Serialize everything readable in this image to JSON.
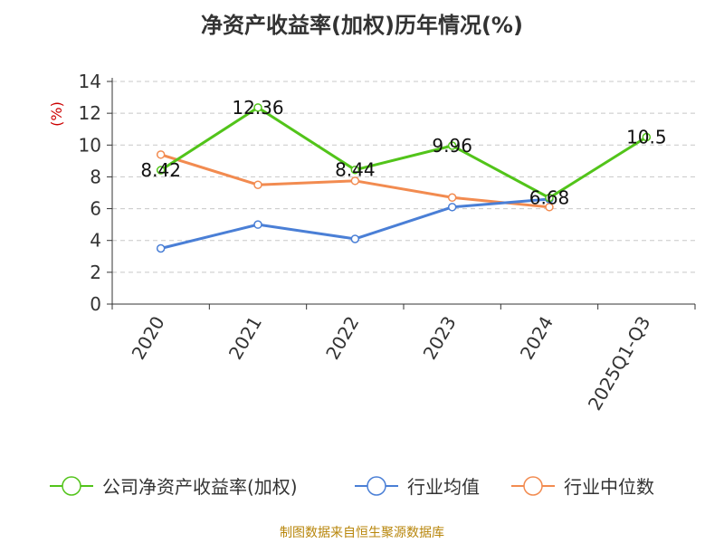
{
  "chart_data": {
    "type": "line",
    "title": "净资产收益率(加权)历年情况(%)",
    "ylabel": "(%)",
    "ylim": [
      0,
      14
    ],
    "yticks": [
      0,
      2,
      4,
      6,
      8,
      10,
      12,
      14
    ],
    "grid": true,
    "legend_position": "bottom",
    "categories": [
      "2020",
      "2021",
      "2022",
      "2023",
      "2024",
      "2025Q1-Q3"
    ],
    "series": [
      {
        "name": "公司净资产收益率(加权)",
        "color": "#52c41a",
        "values": [
          8.42,
          12.36,
          8.44,
          9.96,
          6.68,
          10.5
        ],
        "labels": [
          "8.42",
          "12.36",
          "8.44",
          "9.96",
          "6.68",
          "10.5"
        ]
      },
      {
        "name": "行业均值",
        "color": "#4a7fd6",
        "values": [
          3.5,
          5.0,
          4.1,
          6.1,
          6.6,
          null
        ]
      },
      {
        "name": "行业中位数",
        "color": "#f28b50",
        "values": [
          9.4,
          7.5,
          7.75,
          6.7,
          6.1,
          null
        ]
      }
    ]
  },
  "source_note": "制图数据来自恒生聚源数据库"
}
